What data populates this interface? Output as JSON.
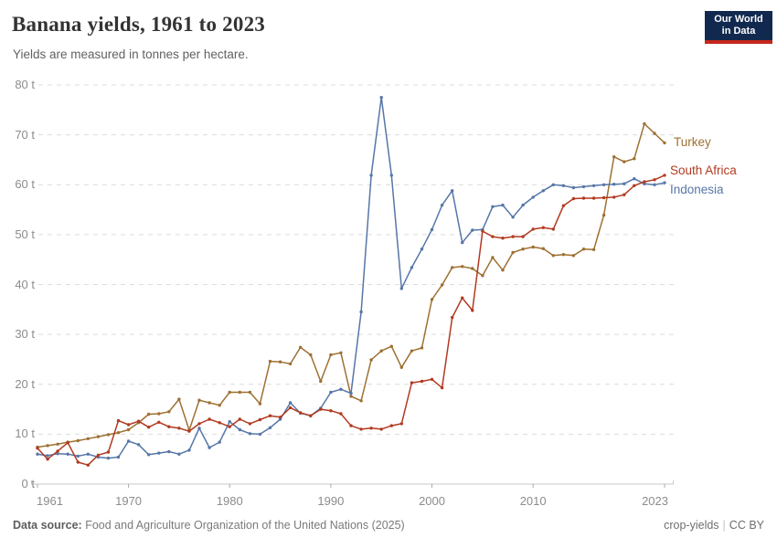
{
  "header": {
    "title": "Banana yields, 1961 to 2023",
    "subtitle": "Yields are measured in tonnes per hectare.",
    "logo": {
      "line1": "Our World",
      "line2": "in Data"
    }
  },
  "footer": {
    "source_label": "Data source:",
    "source_text": " Food and Agriculture Organization of the United Nations (2025)",
    "slug": "crop-yields",
    "separator": "|",
    "license": "CC BY"
  },
  "chart_data": {
    "type": "line",
    "title": "Banana yields, 1961 to 2023",
    "subtitle": "Yields are measured in tonnes per hectare.",
    "ylabel": "tonnes per hectare",
    "xlabel": "",
    "xlim": [
      1961,
      2023
    ],
    "ylim": [
      0,
      80
    ],
    "grid": "horizontal-dashed",
    "legend_position": "right-edge-labels",
    "y_ticks": [
      0,
      10,
      20,
      30,
      40,
      50,
      60,
      70,
      80
    ],
    "y_tick_suffix": " t",
    "x_ticks": [
      1961,
      1970,
      1980,
      1990,
      2000,
      2010,
      2023
    ],
    "x": [
      1961,
      1962,
      1963,
      1964,
      1965,
      1966,
      1967,
      1968,
      1969,
      1970,
      1971,
      1972,
      1973,
      1974,
      1975,
      1976,
      1977,
      1978,
      1979,
      1980,
      1981,
      1982,
      1983,
      1984,
      1985,
      1986,
      1987,
      1988,
      1989,
      1990,
      1991,
      1992,
      1993,
      1994,
      1995,
      1996,
      1997,
      1998,
      1999,
      2000,
      2001,
      2002,
      2003,
      2004,
      2005,
      2006,
      2007,
      2008,
      2009,
      2010,
      2011,
      2012,
      2013,
      2014,
      2015,
      2016,
      2017,
      2018,
      2019,
      2020,
      2021,
      2022,
      2023
    ],
    "series": [
      {
        "name": "Turkey",
        "color": "#9E7032",
        "values": [
          7.4,
          7.7,
          8.0,
          8.4,
          8.7,
          9.1,
          9.5,
          9.9,
          10.3,
          10.9,
          12.3,
          14.0,
          14.1,
          14.5,
          17.0,
          10.8,
          16.8,
          16.3,
          15.8,
          18.4,
          18.4,
          18.4,
          16.1,
          24.6,
          24.5,
          24.1,
          27.4,
          25.9,
          20.6,
          25.9,
          26.3,
          17.6,
          16.7,
          24.9,
          26.7,
          27.6,
          23.4,
          26.7,
          27.3,
          37.0,
          39.9,
          43.4,
          43.6,
          43.2,
          41.8,
          45.4,
          42.9,
          46.4,
          47.1,
          47.5,
          47.2,
          45.8,
          46.0,
          45.8,
          47.1,
          47.0,
          53.9,
          65.6,
          64.6,
          65.2,
          72.2,
          70.3,
          68.4
        ]
      },
      {
        "name": "Indonesia",
        "color": "#5676A8",
        "values": [
          6.0,
          5.7,
          6.1,
          6.0,
          5.6,
          6.0,
          5.4,
          5.2,
          5.4,
          8.6,
          7.9,
          5.9,
          6.2,
          6.5,
          6.0,
          6.8,
          11.2,
          7.3,
          8.4,
          12.5,
          10.9,
          10.1,
          10.0,
          11.3,
          13.0,
          16.3,
          14.2,
          13.7,
          15.2,
          18.4,
          19.0,
          18.2,
          34.5,
          61.9,
          77.5,
          61.9,
          39.2,
          43.4,
          47.1,
          51.0,
          55.9,
          58.8,
          48.4,
          50.9,
          51.0,
          55.6,
          55.9,
          53.5,
          55.9,
          57.5,
          58.8,
          60.0,
          59.8,
          59.4,
          59.6,
          59.8,
          60.0,
          60.1,
          60.2,
          61.2,
          60.2,
          60.0,
          60.4
        ]
      },
      {
        "name": "South Africa",
        "color": "#B23A20",
        "values": [
          7.2,
          5.0,
          6.6,
          8.3,
          4.4,
          3.8,
          5.8,
          6.4,
          12.7,
          11.9,
          12.6,
          11.4,
          12.4,
          11.5,
          11.2,
          10.6,
          12.1,
          13.0,
          12.3,
          11.5,
          13.0,
          12.1,
          12.9,
          13.7,
          13.4,
          15.3,
          14.3,
          13.7,
          15.0,
          14.7,
          14.1,
          11.7,
          11.0,
          11.2,
          11.0,
          11.7,
          12.1,
          20.3,
          20.6,
          21.0,
          19.3,
          33.4,
          37.3,
          34.8,
          50.7,
          49.6,
          49.3,
          49.6,
          49.6,
          51.1,
          51.4,
          51.1,
          55.8,
          57.2,
          57.3,
          57.3,
          57.4,
          57.5,
          58.0,
          59.8,
          60.6,
          61.0,
          61.9
        ]
      }
    ]
  }
}
